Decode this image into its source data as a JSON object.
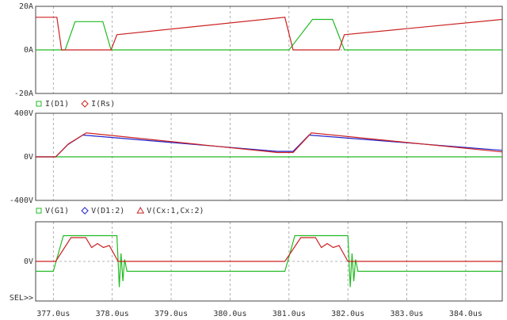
{
  "chart_data": [
    {
      "type": "line",
      "ylim": [
        -20,
        20
      ],
      "yticks": [
        {
          "value": 20,
          "label": "20A"
        },
        {
          "value": 0,
          "label": "0A"
        },
        {
          "value": -20,
          "label": "-20A"
        }
      ],
      "xlim": [
        376.7,
        384.62
      ],
      "grid": true,
      "series": [
        {
          "name": "I(D1)",
          "color": "#22bb22",
          "marker": "square",
          "x": [
            376.7,
            377.2,
            377.37,
            377.84,
            377.98,
            381.0,
            381.4,
            381.74,
            381.94,
            384.62
          ],
          "values": [
            0,
            0,
            13,
            13,
            0,
            0,
            14,
            14,
            0,
            0
          ]
        },
        {
          "name": "I(Rs)",
          "color": "#cc2222",
          "marker": "diamond",
          "x": [
            376.7,
            377.06,
            377.14,
            377.98,
            378.08,
            380.93,
            381.07,
            381.85,
            381.94,
            384.62
          ],
          "values": [
            15,
            15,
            0,
            0,
            7,
            15,
            0,
            0,
            7,
            14
          ]
        }
      ]
    },
    {
      "type": "line",
      "ylim": [
        -400,
        400
      ],
      "yticks": [
        {
          "value": 400,
          "label": "400V"
        },
        {
          "value": 0,
          "label": "0V"
        },
        {
          "value": -400,
          "label": "-400V"
        }
      ],
      "xlim": [
        376.7,
        384.62
      ],
      "grid": true,
      "series": [
        {
          "name": "V(G1)",
          "color": "#22bb22",
          "marker": "square",
          "x": [
            376.7,
            384.62
          ],
          "values": [
            0,
            0
          ]
        },
        {
          "name": "V(D1:2)",
          "color": "#2222cc",
          "marker": "diamond",
          "x": [
            376.7,
            377.04,
            377.24,
            377.5,
            380.8,
            381.07,
            381.34,
            384.62
          ],
          "values": [
            0,
            0,
            110,
            200,
            50,
            50,
            200,
            60
          ]
        },
        {
          "name": "V(Cx:1,Cx:2)",
          "color": "#cc2222",
          "marker": "triangle",
          "x": [
            376.7,
            377.04,
            377.26,
            377.56,
            380.8,
            381.07,
            381.38,
            384.62
          ],
          "values": [
            0,
            0,
            120,
            220,
            40,
            40,
            220,
            45
          ]
        }
      ]
    },
    {
      "type": "line",
      "ylim": [
        -20,
        20
      ],
      "yticks": [
        {
          "value": 0,
          "label": "0V"
        }
      ],
      "xlim": [
        376.7,
        384.62
      ],
      "grid": true,
      "xticks": [
        {
          "value": 377,
          "label": "377.0us"
        },
        {
          "value": 378,
          "label": "378.0us"
        },
        {
          "value": 379,
          "label": "379.0us"
        },
        {
          "value": 380,
          "label": "380.0us"
        },
        {
          "value": 381,
          "label": "381.0us"
        },
        {
          "value": 382,
          "label": "382.0us"
        },
        {
          "value": 383,
          "label": "383.0us"
        },
        {
          "value": 384,
          "label": "384.0us"
        }
      ],
      "annotation": "SEL>>",
      "series": [
        {
          "color": "#22bb22",
          "x": [
            376.7,
            377.0,
            377.17,
            378.08,
            378.12,
            378.15,
            378.18,
            378.21,
            378.25,
            380.93,
            381.1,
            382.0,
            382.04,
            382.07,
            382.1,
            382.13,
            382.17,
            384.62
          ],
          "values": [
            -5,
            -5,
            13,
            13,
            -13,
            4,
            -10,
            1,
            -5,
            -5,
            13,
            13,
            -13,
            4,
            -10,
            1,
            -5,
            -5
          ]
        },
        {
          "color": "#cc2222",
          "x": [
            376.7,
            377.04,
            377.3,
            377.55,
            377.65,
            377.75,
            377.85,
            377.95,
            378.1,
            380.93,
            381.2,
            381.45,
            381.55,
            381.65,
            381.75,
            381.85,
            382.0,
            384.62
          ],
          "values": [
            0,
            0,
            12,
            12,
            7,
            9,
            7,
            8,
            0,
            0,
            12,
            12,
            7,
            9,
            7,
            8,
            0,
            0
          ]
        }
      ]
    }
  ]
}
